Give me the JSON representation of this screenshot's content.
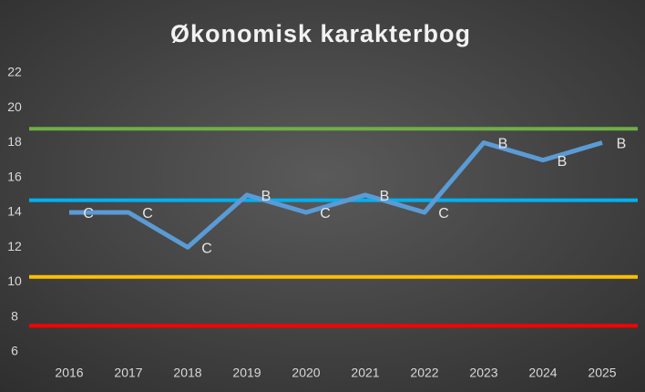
{
  "chart_data": {
    "type": "line",
    "title": "Økonomisk karakterbog",
    "categories": [
      "2016",
      "2017",
      "2018",
      "2019",
      "2020",
      "2021",
      "2022",
      "2023",
      "2024",
      "2025"
    ],
    "series": [
      {
        "color": "#5b9bd5",
        "values": [
          14,
          14,
          12,
          15,
          14,
          15,
          14,
          18,
          17,
          18
        ],
        "value_labels": [
          "C",
          "C",
          "C",
          "B",
          "C",
          "B",
          "C",
          "B",
          "B",
          "B"
        ]
      }
    ],
    "reference_lines": [
      {
        "value": 18.8,
        "color": "#70ad47"
      },
      {
        "value": 14.7,
        "color": "#00b0f0"
      },
      {
        "value": 10.3,
        "color": "#ffc000"
      },
      {
        "value": 7.5,
        "color": "#ff0000"
      }
    ],
    "ylim": [
      6,
      22
    ],
    "yticks": [
      6,
      8,
      10,
      12,
      14,
      16,
      18,
      20,
      22
    ],
    "grid": false
  }
}
